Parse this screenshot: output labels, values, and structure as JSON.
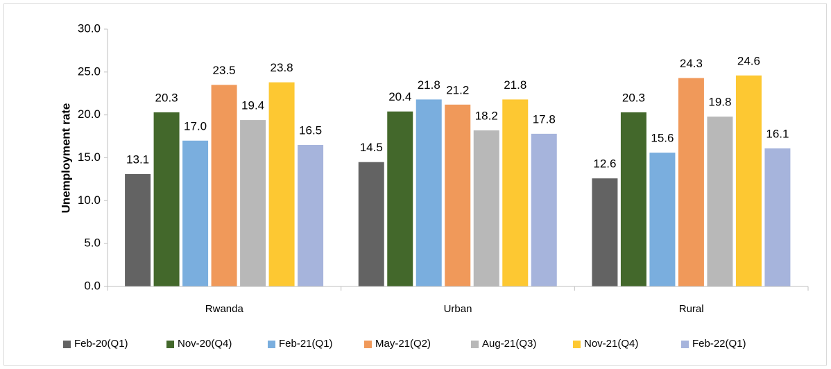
{
  "chart_data": {
    "type": "bar",
    "ylabel": "Unemployment rate",
    "categories": [
      "Rwanda",
      "Urban",
      "Rural"
    ],
    "series": [
      {
        "name": "Feb-20(Q1)",
        "color": "#636363",
        "values": [
          13.1,
          14.5,
          12.6
        ],
        "value_labels": [
          "13.1",
          "14.5",
          "12.6"
        ]
      },
      {
        "name": "Nov-20(Q4)",
        "color": "#43682b",
        "values": [
          20.3,
          20.4,
          20.3
        ],
        "value_labels": [
          "20.3",
          "20.4",
          "20.3"
        ]
      },
      {
        "name": "Feb-21(Q1)",
        "color": "#7aaede",
        "values": [
          17.0,
          21.8,
          15.6
        ],
        "value_labels": [
          "17.0",
          "21.8",
          "15.6"
        ]
      },
      {
        "name": "May-21(Q2)",
        "color": "#f0995a",
        "values": [
          23.5,
          21.2,
          24.3
        ],
        "value_labels": [
          "23.5",
          "21.2",
          "24.3"
        ]
      },
      {
        "name": "Aug-21(Q3)",
        "color": "#b8b8b8",
        "values": [
          19.4,
          18.2,
          19.8
        ],
        "value_labels": [
          "19.4",
          "18.2",
          "19.8"
        ]
      },
      {
        "name": "Nov-21(Q4)",
        "color": "#fdc832",
        "values": [
          23.8,
          21.8,
          24.6
        ],
        "value_labels": [
          "23.8",
          "21.8",
          "24.6"
        ]
      },
      {
        "name": "Feb-22(Q1)",
        "color": "#a6b4dc",
        "values": [
          16.5,
          17.8,
          16.1
        ],
        "value_labels": [
          "16.5",
          "17.8",
          "16.1"
        ]
      }
    ],
    "ylim": [
      0,
      30
    ],
    "yticks": [
      {
        "value": 0,
        "label": "0.0"
      },
      {
        "value": 5,
        "label": "5.0"
      },
      {
        "value": 10,
        "label": "10.0"
      },
      {
        "value": 15,
        "label": "15.0"
      },
      {
        "value": 20,
        "label": "20.0"
      },
      {
        "value": 25,
        "label": "25.0"
      },
      {
        "value": 30,
        "label": "30.0"
      }
    ],
    "legend": "bottom"
  }
}
